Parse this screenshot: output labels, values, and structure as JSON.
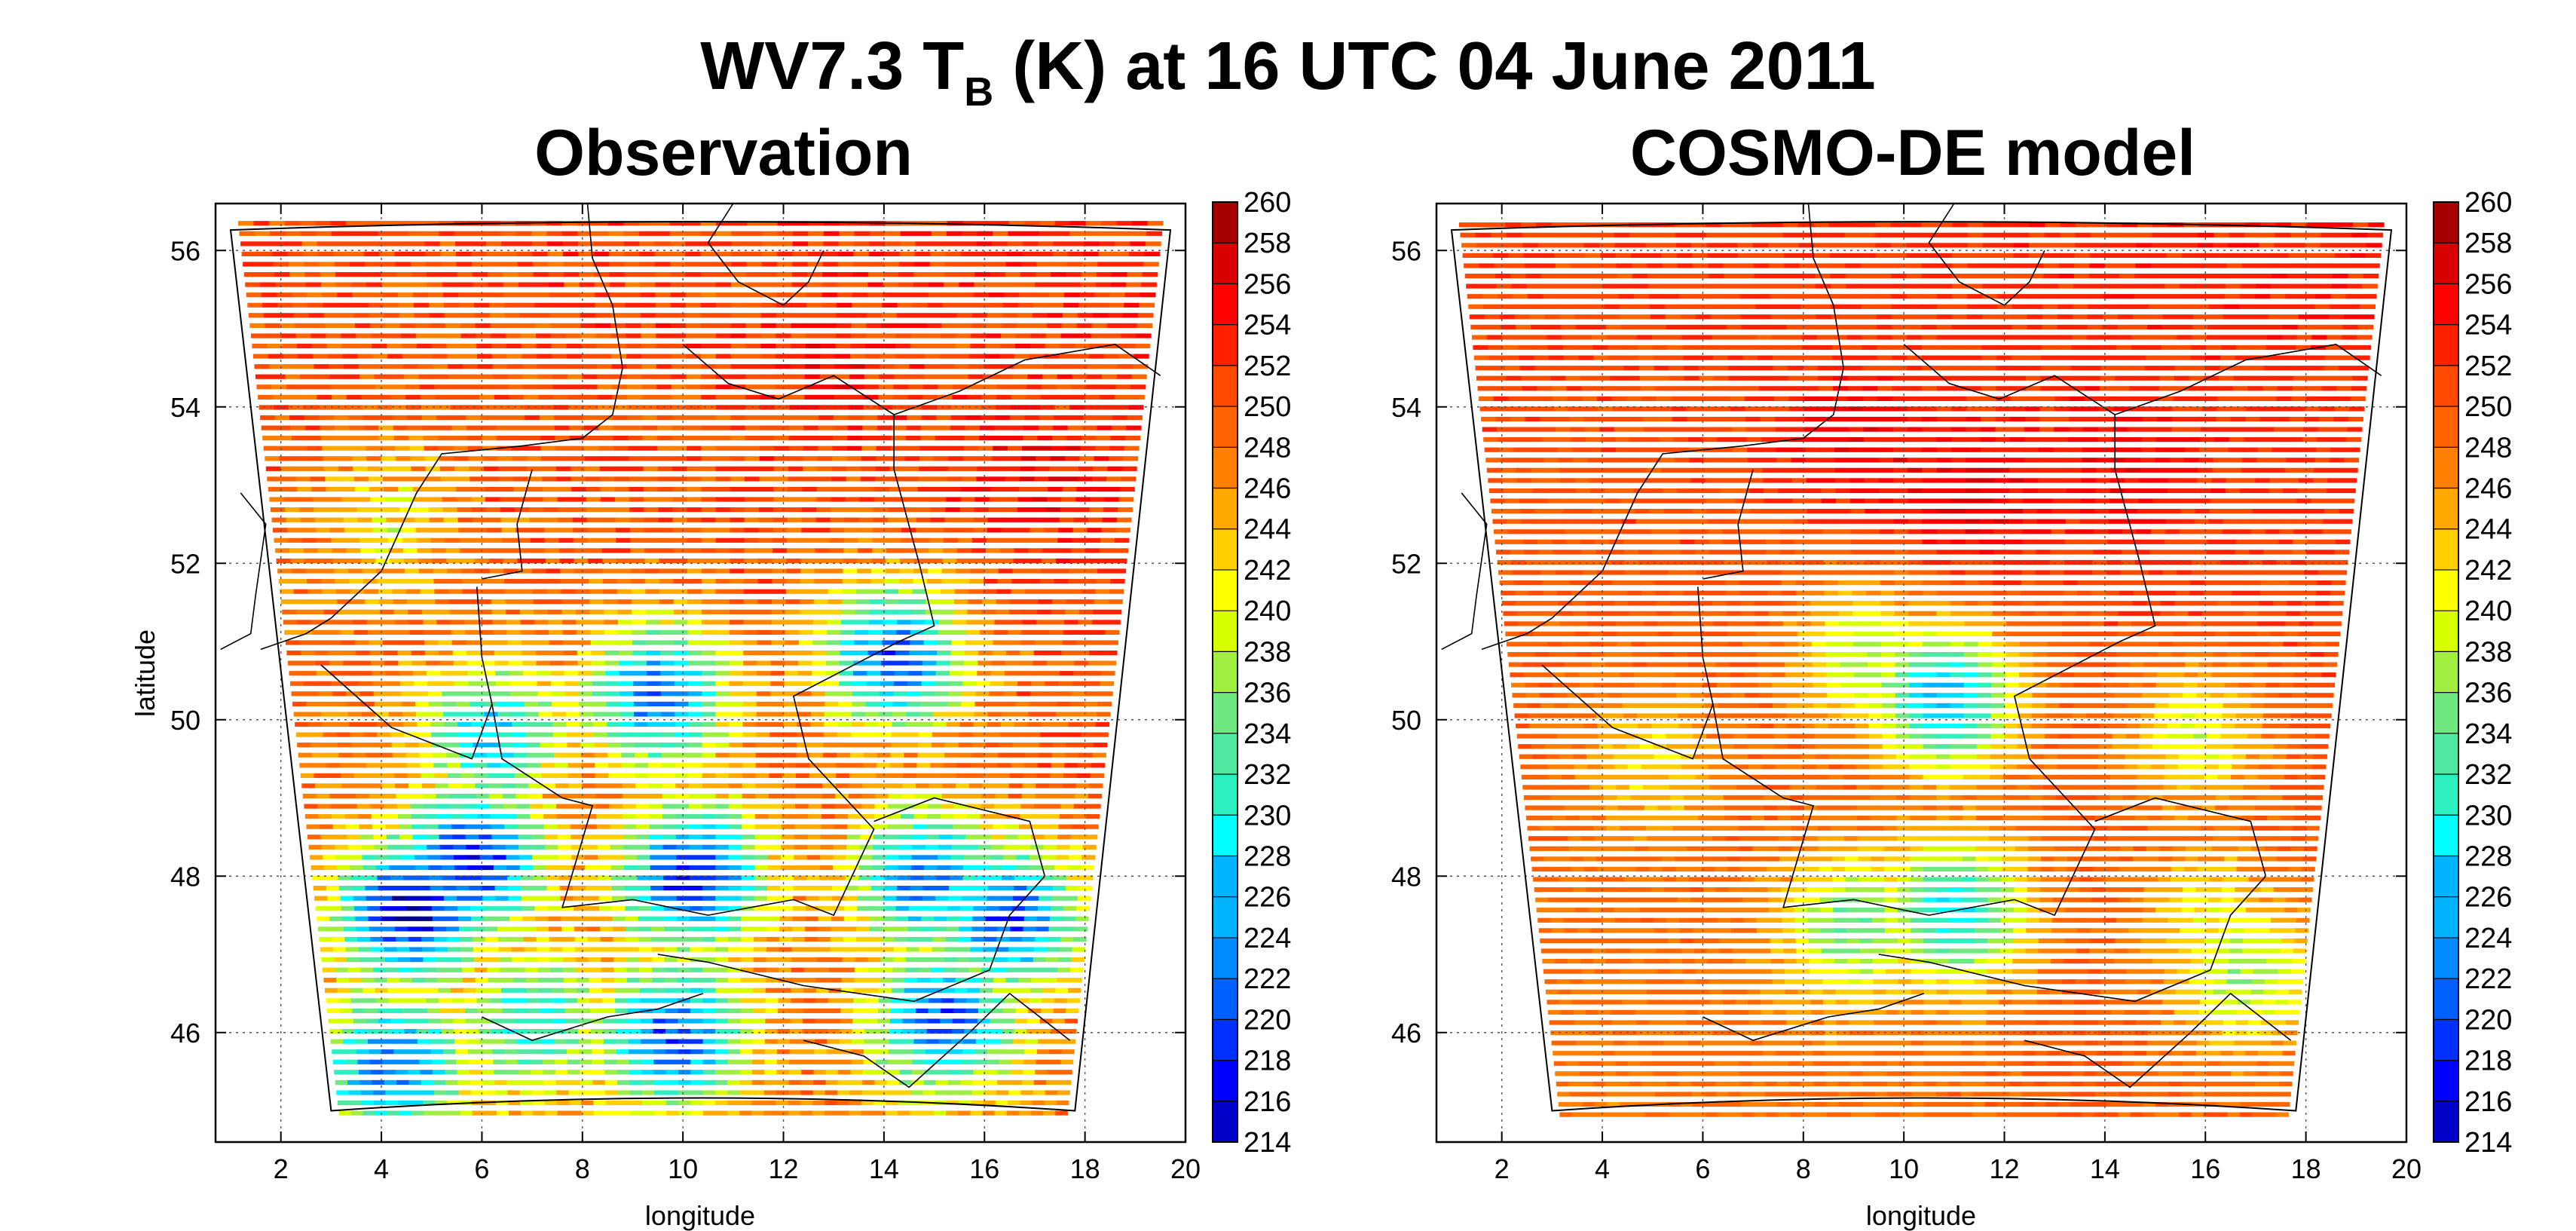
{
  "figure": {
    "title_prefix": "WV7.3 T",
    "title_subscript": "B",
    "title_suffix": " (K) at 16 UTC 04 June 2011"
  },
  "chart_data": [
    {
      "type": "heatmap",
      "title": "Observation",
      "xlabel": "longitude",
      "ylabel": "latitude",
      "xlim": [
        0.7,
        20
      ],
      "ylim": [
        44.6,
        56.6
      ],
      "x_ticks": [
        2,
        4,
        6,
        8,
        10,
        12,
        14,
        16,
        18,
        20
      ],
      "y_ticks": [
        46,
        48,
        50,
        52,
        54,
        56
      ],
      "grid": true,
      "colorbar": {
        "min": 214,
        "max": 260,
        "step": 2,
        "tick_labels": [
          "214",
          "216",
          "218",
          "220",
          "222",
          "224",
          "226",
          "228",
          "230",
          "232",
          "234",
          "236",
          "238",
          "240",
          "242",
          "244",
          "246",
          "248",
          "250",
          "252",
          "254",
          "256",
          "258",
          "260"
        ]
      },
      "domain_outline_lon_lat": [
        [
          1.0,
          56.3
        ],
        [
          19.7,
          56.3
        ],
        [
          17.8,
          45.0
        ],
        [
          3.0,
          45.0
        ]
      ],
      "field_base_K": 250,
      "features": [
        {
          "lon": 4.6,
          "lat": 47.6,
          "value": 216
        },
        {
          "lon": 5.8,
          "lat": 48.2,
          "value": 218
        },
        {
          "lon": 9.5,
          "lat": 50.3,
          "value": 222
        },
        {
          "lon": 10.2,
          "lat": 48.0,
          "value": 218
        },
        {
          "lon": 6.2,
          "lat": 49.8,
          "value": 228
        },
        {
          "lon": 14.8,
          "lat": 48.0,
          "value": 222
        },
        {
          "lon": 16.5,
          "lat": 47.5,
          "value": 220
        },
        {
          "lon": 14.2,
          "lat": 50.8,
          "value": 220
        },
        {
          "lon": 4.2,
          "lat": 45.6,
          "value": 224
        },
        {
          "lon": 9.8,
          "lat": 46.0,
          "value": 222
        },
        {
          "lon": 15.2,
          "lat": 46.2,
          "value": 222
        },
        {
          "lon": 4.2,
          "lat": 52.5,
          "value": 242
        },
        {
          "lon": 7.0,
          "lat": 46.2,
          "value": 232
        },
        {
          "lon": 12.8,
          "lat": 54.3,
          "value": 254
        },
        {
          "lon": 17.0,
          "lat": 53.0,
          "value": 256
        }
      ]
    },
    {
      "type": "heatmap",
      "title": "COSMO-DE model",
      "xlabel": "longitude",
      "ylabel": "",
      "xlim": [
        0.7,
        20
      ],
      "ylim": [
        44.6,
        56.6
      ],
      "x_ticks": [
        2,
        4,
        6,
        8,
        10,
        12,
        14,
        16,
        18,
        20
      ],
      "y_ticks": [
        46,
        48,
        50,
        52,
        54,
        56
      ],
      "grid": true,
      "colorbar": {
        "min": 214,
        "max": 260,
        "step": 2,
        "tick_labels": [
          "214",
          "216",
          "218",
          "220",
          "222",
          "224",
          "226",
          "228",
          "230",
          "232",
          "234",
          "236",
          "238",
          "240",
          "242",
          "244",
          "246",
          "248",
          "250",
          "252",
          "254",
          "256",
          "258",
          "260"
        ]
      },
      "domain_outline_lon_lat": [
        [
          1.0,
          56.3
        ],
        [
          19.7,
          56.3
        ],
        [
          17.8,
          45.0
        ],
        [
          3.0,
          45.0
        ]
      ],
      "field_base_K": 251,
      "features": [
        {
          "lon": 11.5,
          "lat": 52.8,
          "value": 259
        },
        {
          "lon": 9.0,
          "lat": 53.5,
          "value": 258
        },
        {
          "lon": 14.5,
          "lat": 53.2,
          "value": 257
        },
        {
          "lon": 10.8,
          "lat": 50.3,
          "value": 226
        },
        {
          "lon": 9.2,
          "lat": 50.8,
          "value": 238
        },
        {
          "lon": 11.0,
          "lat": 47.6,
          "value": 230
        },
        {
          "lon": 9.0,
          "lat": 47.4,
          "value": 236
        },
        {
          "lon": 16.2,
          "lat": 47.5,
          "value": 242
        },
        {
          "lon": 16.8,
          "lat": 46.8,
          "value": 238
        },
        {
          "lon": 5.0,
          "lat": 49.5,
          "value": 244
        },
        {
          "lon": 15.8,
          "lat": 49.8,
          "value": 240
        },
        {
          "lon": 13.5,
          "lat": 45.6,
          "value": 254
        }
      ]
    }
  ]
}
